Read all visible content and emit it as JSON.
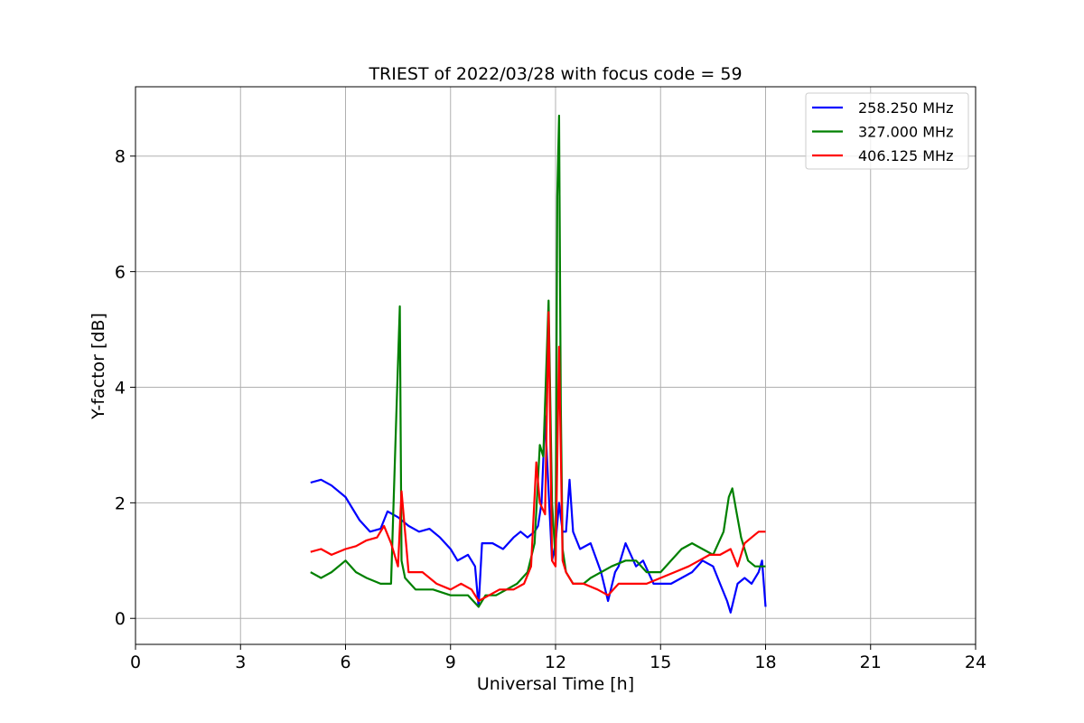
{
  "chart_data": {
    "type": "line",
    "title": "TRIEST of 2022/03/28 with focus code = 59",
    "xlabel": "Universal Time [h]",
    "ylabel": "Y-factor [dB]",
    "xlim": [
      0,
      24
    ],
    "ylim": [
      -0.45,
      9.2
    ],
    "xticks": [
      0,
      3,
      6,
      9,
      12,
      15,
      18,
      21,
      24
    ],
    "yticks": [
      0,
      2,
      4,
      6,
      8
    ],
    "grid": true,
    "legend_position": "top-right",
    "series": [
      {
        "name": "258.250 MHz",
        "color": "#0000ff",
        "x": [
          5.0,
          5.3,
          5.6,
          6.0,
          6.4,
          6.7,
          7.0,
          7.2,
          7.5,
          7.8,
          8.1,
          8.4,
          8.7,
          9.0,
          9.2,
          9.5,
          9.7,
          9.8,
          9.9,
          10.2,
          10.5,
          10.8,
          11.0,
          11.2,
          11.4,
          11.5,
          11.6,
          11.7,
          11.8,
          11.9,
          12.0,
          12.1,
          12.2,
          12.3,
          12.4,
          12.5,
          12.7,
          13.0,
          13.3,
          13.5,
          13.7,
          13.8,
          14.0,
          14.3,
          14.5,
          14.8,
          15.0,
          15.3,
          15.6,
          15.9,
          16.2,
          16.5,
          16.7,
          16.9,
          17.0,
          17.2,
          17.4,
          17.6,
          17.8,
          17.9,
          18.0
        ],
        "y": [
          2.35,
          2.4,
          2.3,
          2.1,
          1.7,
          1.5,
          1.55,
          1.85,
          1.75,
          1.6,
          1.5,
          1.55,
          1.4,
          1.2,
          1.0,
          1.1,
          0.9,
          0.2,
          1.3,
          1.3,
          1.2,
          1.4,
          1.5,
          1.4,
          1.5,
          1.6,
          2.0,
          3.5,
          2.2,
          1.0,
          1.3,
          2.0,
          1.5,
          1.5,
          2.4,
          1.5,
          1.2,
          1.3,
          0.8,
          0.3,
          0.8,
          0.9,
          1.3,
          0.9,
          1.0,
          0.6,
          0.6,
          0.6,
          0.7,
          0.8,
          1.0,
          0.9,
          0.6,
          0.3,
          0.1,
          0.6,
          0.7,
          0.6,
          0.8,
          1.0,
          0.2
        ]
      },
      {
        "name": "327.000 MHz",
        "color": "#008000",
        "x": [
          5.0,
          5.3,
          5.6,
          6.0,
          6.3,
          6.6,
          7.0,
          7.3,
          7.45,
          7.55,
          7.6,
          7.7,
          8.0,
          8.5,
          9.0,
          9.5,
          9.8,
          10.0,
          10.3,
          10.6,
          10.9,
          11.2,
          11.4,
          11.55,
          11.65,
          11.8,
          11.9,
          12.0,
          12.05,
          12.1,
          12.15,
          12.2,
          12.3,
          12.5,
          12.8,
          13.0,
          13.3,
          13.6,
          14.0,
          14.3,
          14.6,
          15.0,
          15.3,
          15.6,
          15.9,
          16.2,
          16.5,
          16.8,
          16.95,
          17.05,
          17.15,
          17.3,
          17.5,
          17.7,
          17.9,
          18.0
        ],
        "y": [
          0.8,
          0.7,
          0.8,
          1.0,
          0.8,
          0.7,
          0.6,
          0.6,
          3.5,
          5.4,
          1.0,
          0.7,
          0.5,
          0.5,
          0.4,
          0.4,
          0.2,
          0.4,
          0.4,
          0.5,
          0.6,
          0.8,
          1.3,
          3.0,
          2.8,
          5.5,
          2.0,
          1.0,
          7.3,
          8.7,
          3.7,
          1.2,
          0.8,
          0.6,
          0.6,
          0.7,
          0.8,
          0.9,
          1.0,
          1.0,
          0.8,
          0.8,
          1.0,
          1.2,
          1.3,
          1.2,
          1.1,
          1.5,
          2.1,
          2.25,
          1.9,
          1.4,
          1.0,
          0.9,
          0.9,
          0.9
        ]
      },
      {
        "name": "406.125 MHz",
        "color": "#ff0000",
        "x": [
          5.0,
          5.3,
          5.6,
          6.0,
          6.3,
          6.6,
          6.9,
          7.1,
          7.3,
          7.5,
          7.6,
          7.8,
          8.2,
          8.6,
          9.0,
          9.3,
          9.6,
          9.8,
          10.1,
          10.4,
          10.8,
          11.1,
          11.3,
          11.45,
          11.55,
          11.7,
          11.8,
          11.9,
          12.0,
          12.1,
          12.2,
          12.3,
          12.5,
          12.8,
          13.2,
          13.5,
          13.8,
          14.2,
          14.6,
          15.0,
          15.4,
          15.8,
          16.1,
          16.4,
          16.7,
          17.0,
          17.2,
          17.4,
          17.6,
          17.8,
          18.0
        ],
        "y": [
          1.15,
          1.2,
          1.1,
          1.2,
          1.25,
          1.35,
          1.4,
          1.6,
          1.3,
          0.9,
          2.2,
          0.8,
          0.8,
          0.6,
          0.5,
          0.6,
          0.5,
          0.3,
          0.4,
          0.5,
          0.5,
          0.6,
          0.9,
          2.7,
          2.0,
          1.8,
          5.3,
          1.0,
          0.9,
          4.7,
          1.0,
          0.8,
          0.6,
          0.6,
          0.5,
          0.4,
          0.6,
          0.6,
          0.6,
          0.7,
          0.8,
          0.9,
          1.0,
          1.1,
          1.1,
          1.2,
          0.9,
          1.3,
          1.4,
          1.5,
          1.5
        ]
      }
    ]
  }
}
